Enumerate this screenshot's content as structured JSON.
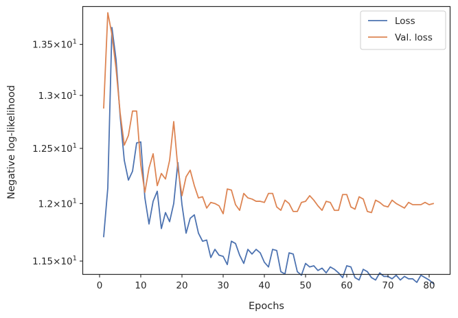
{
  "chart_data": {
    "type": "line",
    "title": "",
    "xlabel": "Epochs",
    "ylabel": "Negative log-likelihood",
    "xlim": [
      -4,
      85
    ],
    "ylim": [
      11.39,
      13.88
    ],
    "yscale": "log",
    "grid": false,
    "legend_position": "top-right",
    "x_ticks": [
      {
        "value": 0,
        "label": "0"
      },
      {
        "value": 10,
        "label": "10"
      },
      {
        "value": 20,
        "label": "20"
      },
      {
        "value": 30,
        "label": "30"
      },
      {
        "value": 40,
        "label": "40"
      },
      {
        "value": 50,
        "label": "50"
      },
      {
        "value": 60,
        "label": "60"
      },
      {
        "value": 70,
        "label": "70"
      },
      {
        "value": 80,
        "label": "80"
      }
    ],
    "y_ticks": [
      {
        "value": 11.5,
        "mantissa": "1.15",
        "base": "10",
        "exp": "1"
      },
      {
        "value": 12.0,
        "mantissa": "1.2",
        "base": "10",
        "exp": "1"
      },
      {
        "value": 12.5,
        "mantissa": "1.25",
        "base": "10",
        "exp": "1"
      },
      {
        "value": 13.0,
        "mantissa": "1.3",
        "base": "10",
        "exp": "1"
      },
      {
        "value": 13.5,
        "mantissa": "1.35",
        "base": "10",
        "exp": "1"
      }
    ],
    "x": [
      1,
      2,
      3,
      4,
      5,
      6,
      7,
      8,
      9,
      10,
      11,
      12,
      13,
      14,
      15,
      16,
      17,
      18,
      19,
      20,
      21,
      22,
      23,
      24,
      25,
      26,
      27,
      28,
      29,
      30,
      31,
      32,
      33,
      34,
      35,
      36,
      37,
      38,
      39,
      40,
      41,
      42,
      43,
      44,
      45,
      46,
      47,
      48,
      49,
      50,
      51,
      52,
      53,
      54,
      55,
      56,
      57,
      58,
      59,
      60,
      61,
      62,
      63,
      64,
      65,
      66,
      67,
      68,
      69,
      70,
      71,
      72,
      73,
      74,
      75,
      76,
      77,
      78,
      79,
      80,
      81
    ],
    "series": [
      {
        "name": "Loss",
        "color": "#4c72b0",
        "values": [
          11.71,
          12.14,
          13.67,
          13.35,
          12.8,
          12.39,
          12.21,
          12.29,
          12.55,
          12.56,
          12.05,
          11.82,
          12.02,
          12.11,
          11.78,
          11.92,
          11.84,
          12.0,
          12.37,
          11.99,
          11.74,
          11.87,
          11.9,
          11.74,
          11.67,
          11.68,
          11.53,
          11.6,
          11.55,
          11.54,
          11.47,
          11.67,
          11.65,
          11.55,
          11.48,
          11.6,
          11.56,
          11.6,
          11.57,
          11.49,
          11.45,
          11.6,
          11.59,
          11.41,
          11.39,
          11.57,
          11.56,
          11.41,
          11.38,
          11.48,
          11.45,
          11.46,
          11.42,
          11.44,
          11.4,
          11.45,
          11.43,
          11.4,
          11.36,
          11.46,
          11.45,
          11.36,
          11.34,
          11.43,
          11.41,
          11.36,
          11.34,
          11.4,
          11.37,
          11.37,
          11.35,
          11.38,
          11.34,
          11.37,
          11.35,
          11.35,
          11.32,
          11.38,
          11.36,
          11.34,
          11.31
        ]
      },
      {
        "name": "Val. loss",
        "color": "#dd8452",
        "values": [
          12.88,
          13.82,
          13.6,
          13.26,
          12.83,
          12.53,
          12.62,
          12.85,
          12.85,
          12.35,
          12.1,
          12.32,
          12.45,
          12.16,
          12.27,
          12.22,
          12.39,
          12.75,
          12.32,
          12.07,
          12.24,
          12.3,
          12.16,
          12.05,
          12.06,
          11.96,
          12.01,
          12.0,
          11.98,
          11.91,
          12.13,
          12.12,
          11.99,
          11.94,
          12.09,
          12.05,
          12.04,
          12.02,
          12.02,
          12.01,
          12.09,
          12.09,
          11.97,
          11.94,
          12.03,
          12.0,
          11.93,
          11.93,
          12.01,
          12.02,
          12.07,
          12.03,
          11.98,
          11.94,
          12.02,
          12.01,
          11.94,
          11.94,
          12.08,
          12.08,
          11.97,
          11.95,
          12.06,
          12.04,
          11.93,
          11.92,
          12.03,
          12.01,
          11.98,
          11.97,
          12.03,
          12.0,
          11.98,
          11.96,
          12.01,
          11.99,
          11.99,
          11.99,
          12.01,
          11.99,
          12.0
        ]
      }
    ]
  }
}
